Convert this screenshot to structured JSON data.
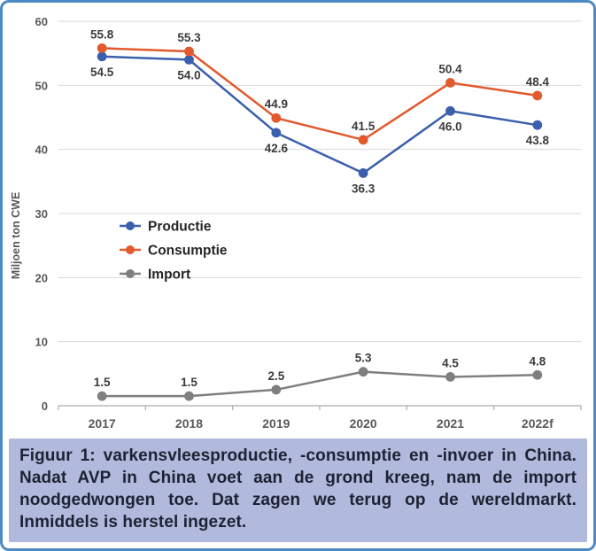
{
  "figure": {
    "caption_label": "Figuur 1:",
    "caption_text": "varkensvleesproductie, -consumptie en -invoer in China. Nadat AVP in China voet aan de grond kreeg, nam de import noodgedwongen toe. Dat zagen we terug op de wereldmarkt. Inmiddels is herstel ingezet.",
    "caption_bg": "#b1b9dc",
    "caption_text_color": "#1d2233",
    "border_color": "#4c8ac6"
  },
  "chart_data": {
    "type": "line",
    "categories": [
      "2017",
      "2018",
      "2019",
      "2020",
      "2021",
      "2022f"
    ],
    "series": [
      {
        "name": "Productie",
        "color": "#3a5fad",
        "values": [
          54.5,
          54.0,
          42.6,
          36.3,
          46.0,
          43.8
        ],
        "label_position": "below"
      },
      {
        "name": "Consumptie",
        "color": "#e2592e",
        "values": [
          55.8,
          55.3,
          44.9,
          41.5,
          50.4,
          48.4
        ],
        "label_position": "above"
      },
      {
        "name": "Import",
        "color": "#7f7f7f",
        "values": [
          1.5,
          1.5,
          2.5,
          5.3,
          4.5,
          4.8
        ],
        "label_position": "above"
      }
    ],
    "ylabel": "Miljoen ton CWE",
    "ylim": [
      0,
      60
    ],
    "ytick_step": 10,
    "grid": true,
    "legend_position": "inside-left",
    "colors": {
      "gridline": "#d8d8d8",
      "axis": "#ababab",
      "tick_label": "#595959",
      "data_label": "#3b3b3b",
      "legend_text": "#262626"
    }
  }
}
